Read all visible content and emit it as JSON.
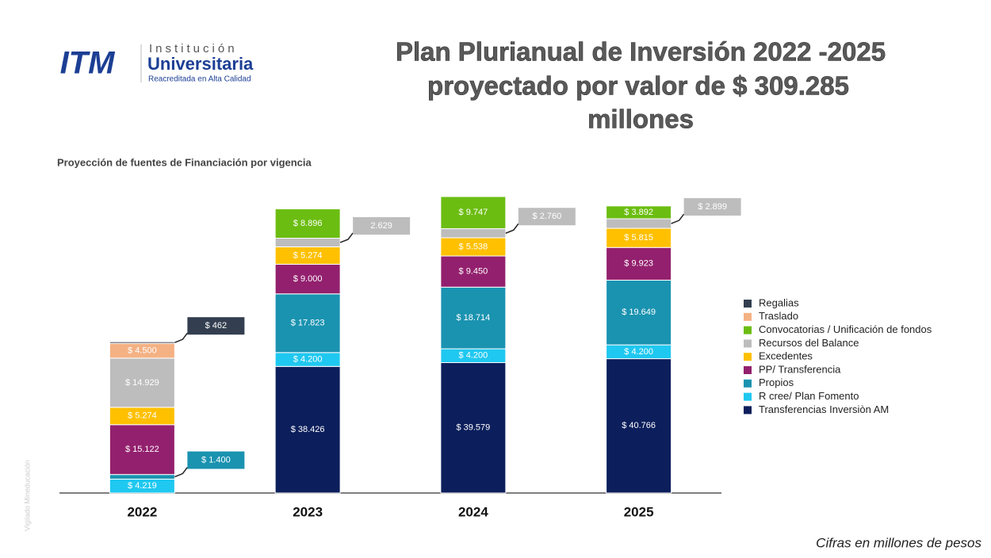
{
  "header": {
    "logo_text": "ITM",
    "institution_line1": "Institución",
    "institution_line2": "Universitaria",
    "tagline": "Reacreditada en Alta Calidad"
  },
  "watermark": "Vigilado Mineducación",
  "chart_data": {
    "type": "bar",
    "stacked": true,
    "title_lines": [
      "Plan Plurianual de Inversión 2022 -2025",
      "proyectado por valor de $ 309.285",
      "millones"
    ],
    "subtitle": "Proyección de fuentes de Financiación por vigencia",
    "note": "Cifras en millones de pesos",
    "categories": [
      "2022",
      "2023",
      "2024",
      "2025"
    ],
    "series": [
      {
        "name": "Transferencias Inversiòn AM",
        "color": "#0c1f5c",
        "values": [
          null,
          38426,
          39579,
          40766
        ],
        "value_labels": [
          null,
          "$ 38.426",
          "$ 39.579",
          "$ 40.766"
        ]
      },
      {
        "name": "R cree/ Plan Fomento",
        "color": "#1fc8f0",
        "values": [
          4219,
          4200,
          4200,
          4200
        ],
        "value_labels": [
          "$ 4.219",
          "$ 4.200",
          "$ 4.200",
          "$ 4.200"
        ]
      },
      {
        "name": "Propios",
        "color": "#1a93b0",
        "values": [
          1400,
          17823,
          18714,
          19649
        ],
        "value_labels": [
          "$ 1.400",
          "$ 17.823",
          "$ 18.714",
          "$ 19.649"
        ]
      },
      {
        "name": "PP/ Transferencia",
        "color": "#93206e",
        "values": [
          15122,
          9000,
          9450,
          9923
        ],
        "value_labels": [
          "$ 15.122",
          "$ 9.000",
          "$ 9.450",
          "$ 9.923"
        ]
      },
      {
        "name": "Excedentes",
        "color": "#ffc000",
        "values": [
          5274,
          5274,
          5538,
          5815
        ],
        "value_labels": [
          "$ 5.274",
          "$ 5.274",
          "$ 5.538",
          "$ 5.815"
        ]
      },
      {
        "name": "Recursos del Balance",
        "color": "#bdbdbd",
        "values": [
          14929,
          2629,
          2760,
          2899
        ],
        "value_labels": [
          "$ 14.929",
          "2.629",
          "$ 2.760",
          "$ 2.899"
        ]
      },
      {
        "name": "Convocatorias / Unificación de fondos",
        "color": "#6cbd12",
        "values": [
          null,
          8896,
          9747,
          3892
        ],
        "value_labels": [
          null,
          "$ 8.896",
          "$ 9.747",
          "$ 3.892"
        ]
      },
      {
        "name": "Traslado",
        "color": "#f4b183",
        "values": [
          4500,
          null,
          null,
          null
        ],
        "value_labels": [
          "$ 4.500",
          null,
          null,
          null
        ]
      },
      {
        "name": "Regalias",
        "color": "#333f50",
        "values": [
          462,
          null,
          null,
          null
        ],
        "value_labels": [
          "$ 462",
          null,
          null,
          null
        ]
      }
    ],
    "legend": "right"
  }
}
